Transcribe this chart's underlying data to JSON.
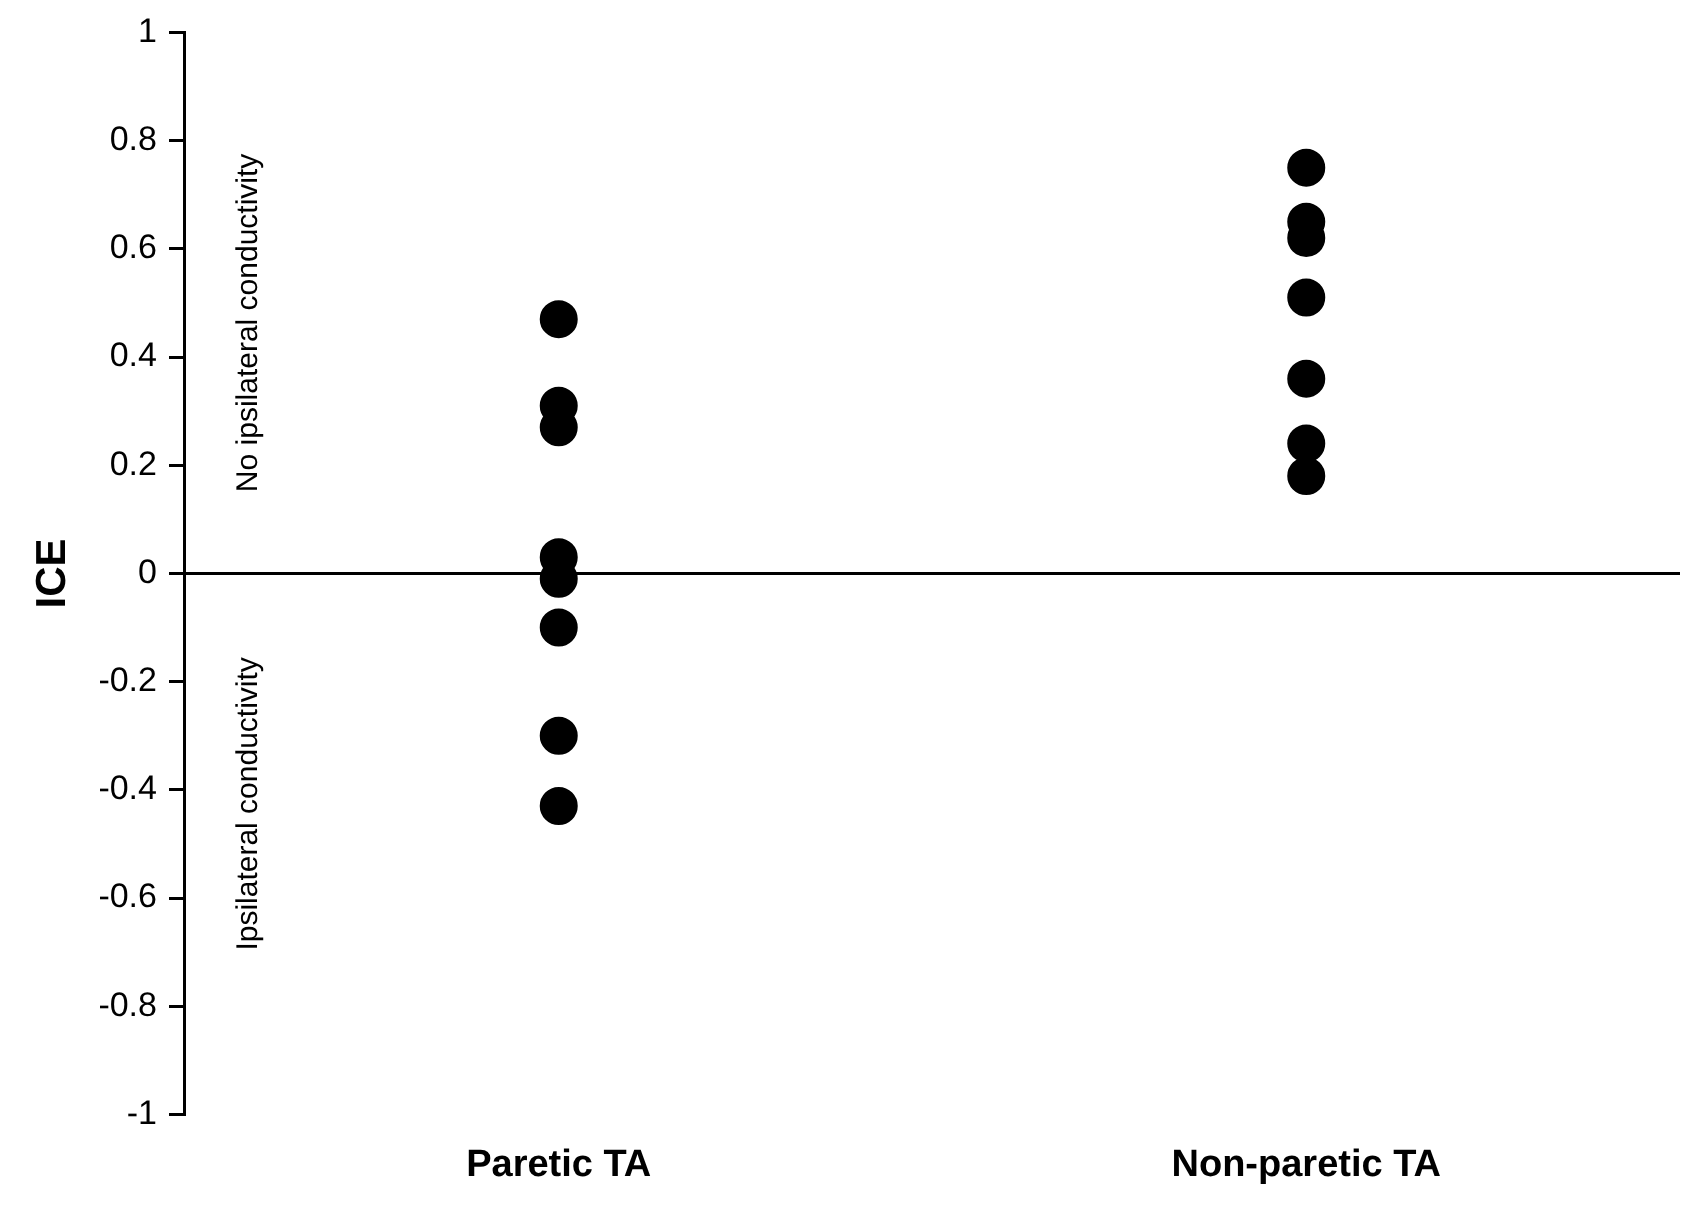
{
  "chart_data": {
    "type": "scatter",
    "ylabel": "ICE",
    "categories": [
      "Paretic TA",
      "Non-paretic TA"
    ],
    "series": [
      {
        "color": "#000000",
        "x": [
          "Paretic TA",
          "Paretic TA",
          "Paretic TA",
          "Paretic TA",
          "Paretic TA",
          "Paretic TA",
          "Paretic TA",
          "Paretic TA",
          "Non-paretic TA",
          "Non-paretic TA",
          "Non-paretic TA",
          "Non-paretic TA",
          "Non-paretic TA",
          "Non-paretic TA",
          "Non-paretic TA"
        ],
        "values": [
          0.47,
          0.31,
          0.27,
          0.03,
          -0.01,
          -0.1,
          -0.3,
          -0.43,
          0.75,
          0.65,
          0.62,
          0.51,
          0.36,
          0.24,
          0.18
        ]
      }
    ],
    "ylim": [
      -1,
      1
    ],
    "yticks": [
      -1,
      -0.8,
      -0.6,
      -0.4,
      -0.2,
      0,
      0.2,
      0.4,
      0.6,
      0.8,
      1
    ],
    "ref_lines": [
      {
        "axis": "y",
        "value": 0,
        "color": "#000000"
      }
    ],
    "annotations": [
      "No ipsilateral conductivity",
      "Ipsilateral conductivity"
    ],
    "marker": "circle",
    "grid": false,
    "legend": false
  }
}
